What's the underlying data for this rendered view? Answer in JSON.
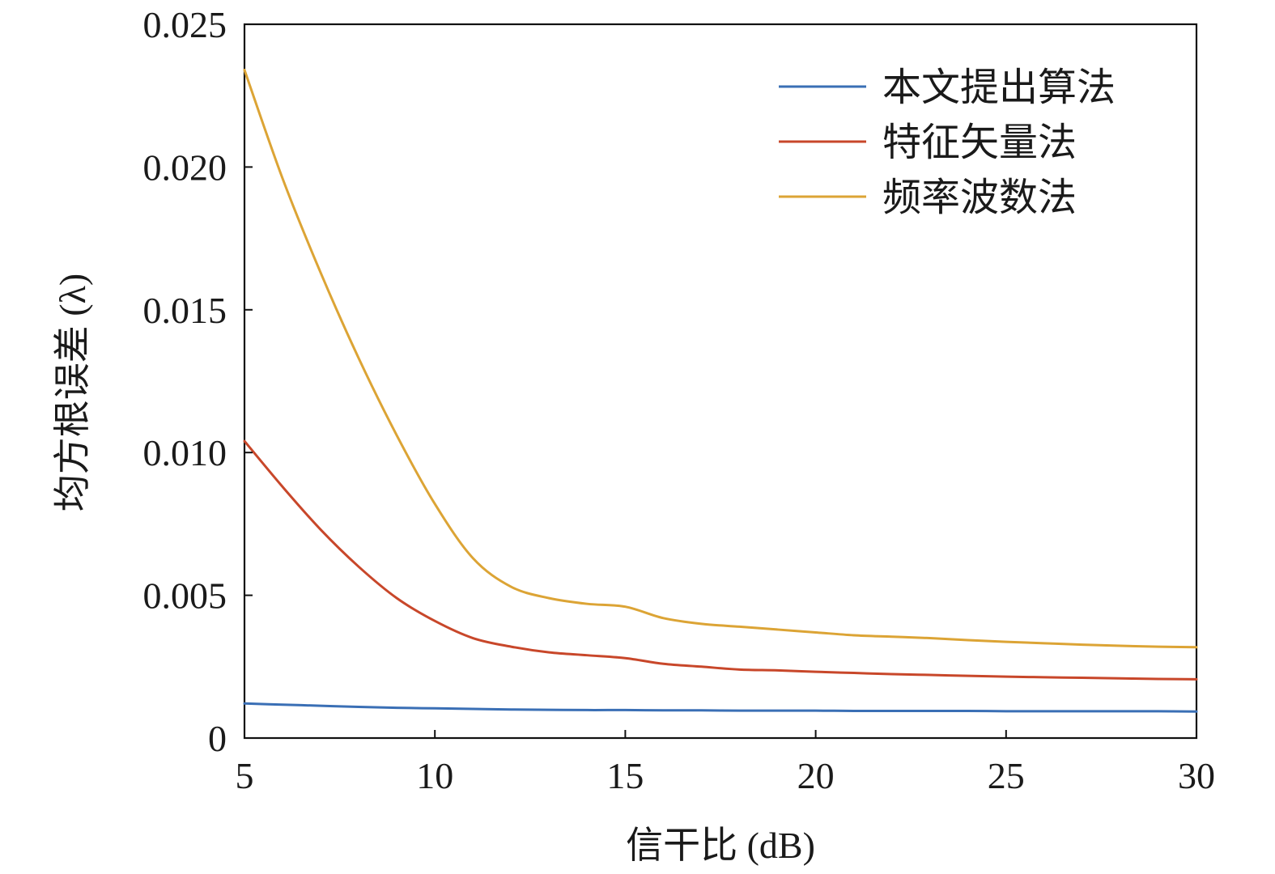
{
  "chart_data": {
    "type": "line",
    "title": "",
    "xlabel": "信干比 (dB)",
    "ylabel": "均方根误差 (λ)",
    "xlim": [
      5,
      30
    ],
    "ylim": [
      0,
      0.025
    ],
    "xticks": [
      5,
      10,
      15,
      20,
      25,
      30
    ],
    "xtick_labels": [
      "5",
      "10",
      "15",
      "20",
      "25",
      "30"
    ],
    "yticks": [
      0,
      0.005,
      0.01,
      0.015,
      0.02,
      0.025
    ],
    "ytick_labels": [
      "0",
      "0.005",
      "0.010",
      "0.015",
      "0.020",
      "0.025"
    ],
    "grid": false,
    "legend_position": "top-right",
    "x": [
      5,
      6,
      7,
      8,
      9,
      10,
      11,
      12,
      13,
      14,
      15,
      16,
      17,
      18,
      19,
      20,
      21,
      22,
      23,
      24,
      25,
      26,
      27,
      28,
      29,
      30
    ],
    "series": [
      {
        "name": "本文提出算法",
        "color": "#3a6fb5",
        "values": [
          0.00121,
          0.00117,
          0.00113,
          0.00109,
          0.00106,
          0.00104,
          0.00102,
          0.001,
          0.00099,
          0.00098,
          0.00098,
          0.00097,
          0.00097,
          0.00096,
          0.00096,
          0.00096,
          0.00095,
          0.00095,
          0.00095,
          0.00095,
          0.00094,
          0.00094,
          0.00094,
          0.00094,
          0.00094,
          0.00093
        ]
      },
      {
        "name": "特征矢量法",
        "color": "#c8472a",
        "values": [
          0.0104,
          0.0088,
          0.0073,
          0.006,
          0.0049,
          0.0041,
          0.0035,
          0.0032,
          0.003,
          0.0029,
          0.0028,
          0.0026,
          0.0025,
          0.0024,
          0.00237,
          0.00232,
          0.00228,
          0.00224,
          0.00221,
          0.00218,
          0.00215,
          0.00213,
          0.00211,
          0.00209,
          0.00207,
          0.00206
        ]
      },
      {
        "name": "频率波数法",
        "color": "#dca435",
        "values": [
          0.0234,
          0.0196,
          0.0163,
          0.0133,
          0.0106,
          0.0082,
          0.0063,
          0.0053,
          0.0049,
          0.0047,
          0.0046,
          0.0042,
          0.004,
          0.0039,
          0.0038,
          0.0037,
          0.0036,
          0.00355,
          0.0035,
          0.00343,
          0.00337,
          0.00332,
          0.00327,
          0.00323,
          0.0032,
          0.00318
        ]
      }
    ]
  }
}
